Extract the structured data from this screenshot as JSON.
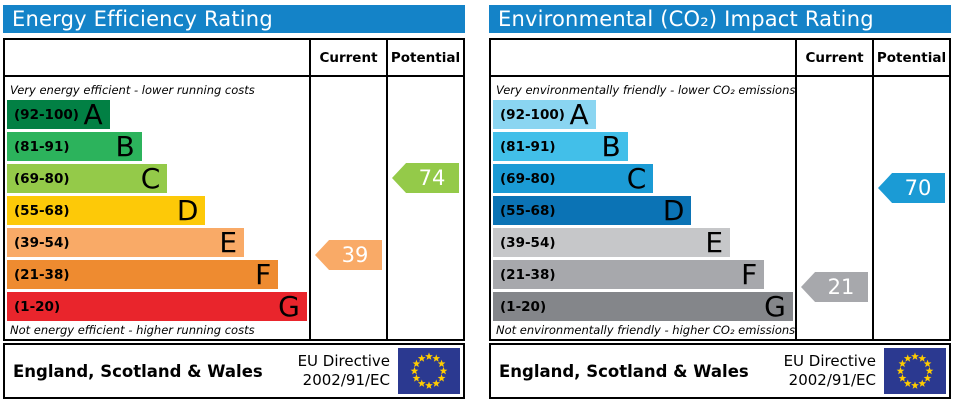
{
  "panels_shared": {
    "col_current": "Current",
    "col_potential": "Potential",
    "region_label": "England, Scotland & Wales",
    "directive_line1": "EU Directive",
    "directive_line2": "2002/91/EC",
    "colors": {
      "header_bg": "#1483c8",
      "header_text": "#ffffff",
      "border": "#000000",
      "arrow_text": "#ffffff",
      "flag_bg": "#2b3990",
      "flag_star": "#ffcc00"
    }
  },
  "chart_data": [
    {
      "type": "bar",
      "id": "energy-efficiency-rating",
      "title": "Energy Efficiency Rating",
      "top_note": "Very energy efficient - lower running costs",
      "bottom_note": "Not energy efficient - higher running costs",
      "columns": [
        "Current",
        "Potential"
      ],
      "scale": {
        "min": 1,
        "max": 100
      },
      "bands": [
        {
          "letter": "A",
          "range_label": "(92-100)",
          "min": 92,
          "max": 100,
          "color": "#028044",
          "width_pct": 34
        },
        {
          "letter": "B",
          "range_label": "(81-91)",
          "min": 81,
          "max": 91,
          "color": "#2cb35c",
          "width_pct": 44.6
        },
        {
          "letter": "C",
          "range_label": "(69-80)",
          "min": 69,
          "max": 80,
          "color": "#94ca49",
          "width_pct": 53.1
        },
        {
          "letter": "D",
          "range_label": "(55-68)",
          "min": 55,
          "max": 68,
          "color": "#fdc908",
          "width_pct": 65.7
        },
        {
          "letter": "E",
          "range_label": "(39-54)",
          "min": 39,
          "max": 54,
          "color": "#f9aa67",
          "width_pct": 78.5
        },
        {
          "letter": "F",
          "range_label": "(21-38)",
          "min": 21,
          "max": 38,
          "color": "#ee8b30",
          "width_pct": 89.8
        },
        {
          "letter": "G",
          "range_label": "(1-20)",
          "min": 1,
          "max": 20,
          "color": "#e9252c",
          "width_pct": 99.3
        }
      ],
      "current": 39,
      "potential": 74,
      "current_band": "E",
      "potential_band": "C"
    },
    {
      "type": "bar",
      "id": "environmental-co2-impact-rating",
      "title": "Environmental (CO₂) Impact Rating",
      "top_note": "Very environmentally friendly - lower CO₂ emissions",
      "bottom_note": "Not environmentally friendly - higher CO₂ emissions",
      "columns": [
        "Current",
        "Potential"
      ],
      "scale": {
        "min": 1,
        "max": 100
      },
      "bands": [
        {
          "letter": "A",
          "range_label": "(92-100)",
          "min": 92,
          "max": 100,
          "color": "#8ad5f1",
          "width_pct": 34
        },
        {
          "letter": "B",
          "range_label": "(81-91)",
          "min": 81,
          "max": 91,
          "color": "#42bfe9",
          "width_pct": 44.6
        },
        {
          "letter": "C",
          "range_label": "(69-80)",
          "min": 69,
          "max": 80,
          "color": "#1b9bd5",
          "width_pct": 53.1
        },
        {
          "letter": "D",
          "range_label": "(55-68)",
          "min": 55,
          "max": 68,
          "color": "#0b73b5",
          "width_pct": 65.7
        },
        {
          "letter": "E",
          "range_label": "(39-54)",
          "min": 39,
          "max": 54,
          "color": "#c6c7c9",
          "width_pct": 78.5
        },
        {
          "letter": "F",
          "range_label": "(21-38)",
          "min": 21,
          "max": 38,
          "color": "#a7a8ac",
          "width_pct": 89.8
        },
        {
          "letter": "G",
          "range_label": "(1-20)",
          "min": 1,
          "max": 20,
          "color": "#84868a",
          "width_pct": 99.3
        }
      ],
      "current": 21,
      "potential": 70,
      "current_band": "F",
      "potential_band": "C"
    }
  ]
}
